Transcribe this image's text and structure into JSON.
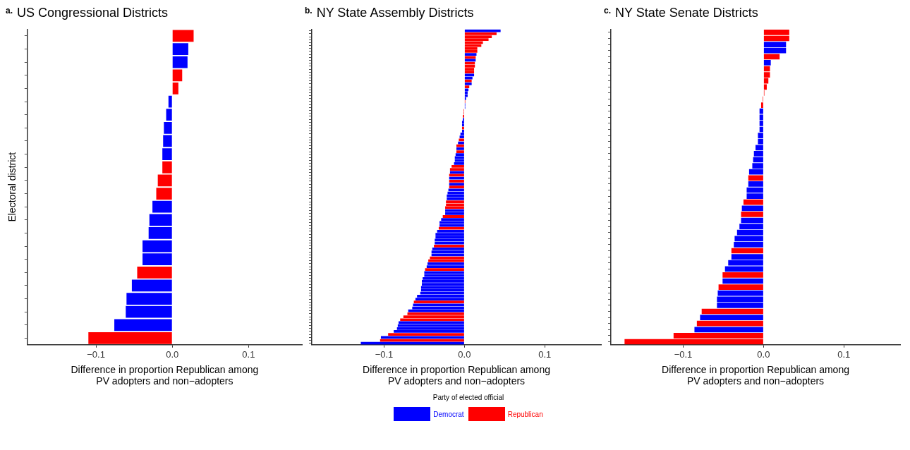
{
  "chart_data": [
    {
      "type": "bar",
      "orientation": "horizontal",
      "title": "US Congressional Districts",
      "annotations": [
        "a."
      ],
      "xlabel": "Difference in proportion Republican among\nPV adopters and non−adopters",
      "ylabel": "Electoral district",
      "xlim": [
        -0.19,
        0.17
      ],
      "xticks": [
        {
          "value": -0.1,
          "label": "−0.1"
        },
        {
          "value": 0,
          "label": "0.0"
        },
        {
          "value": 0.1,
          "label": "0.1"
        }
      ],
      "tick_labels": "x",
      "grid": false,
      "legend": false,
      "categories": [
        null,
        null,
        null,
        null,
        null,
        null,
        null,
        null,
        null,
        null,
        null,
        null,
        null,
        null,
        null,
        null,
        null,
        null,
        null,
        null,
        null,
        null,
        null,
        null
      ],
      "series": [
        {
          "color": "#0000ff",
          "values": [
            null,
            0.021,
            0.02,
            null,
            null,
            -0.005,
            -0.008,
            -0.011,
            -0.012,
            -0.013,
            null,
            null,
            null,
            -0.026,
            -0.03,
            -0.031,
            -0.039,
            -0.039,
            null,
            -0.053,
            -0.06,
            -0.061,
            -0.076,
            null
          ]
        },
        {
          "color": "#ff0000",
          "values": [
            0.028,
            null,
            null,
            0.013,
            0.008,
            null,
            null,
            null,
            null,
            null,
            -0.013,
            -0.019,
            -0.021,
            null,
            null,
            null,
            null,
            null,
            -0.046,
            null,
            null,
            null,
            null,
            -0.11
          ]
        }
      ]
    },
    {
      "type": "bar",
      "orientation": "horizontal",
      "title": "NY State Assembly Districts",
      "annotations": [
        "b."
      ],
      "xlabel": "Difference in proportion Republican among\nPV adopters and non−adopters",
      "xlim": [
        -0.19,
        0.17
      ],
      "xticks": [
        {
          "value": -0.1,
          "label": "−0.1"
        },
        {
          "value": 0,
          "label": "0.0"
        },
        {
          "value": 0.1,
          "label": "0.1"
        }
      ],
      "tick_labels": "x",
      "grid": false,
      "legend": "bottom",
      "legend_title": "Party of elected official",
      "categories": [
        null,
        null,
        null,
        null,
        null,
        null,
        null,
        null,
        null,
        null,
        null,
        null,
        null,
        null,
        null,
        null,
        null,
        null,
        null,
        null,
        null,
        null,
        null,
        null,
        null,
        null,
        null,
        null,
        null,
        null,
        null,
        null,
        null,
        null,
        null,
        null,
        null,
        null,
        null,
        null,
        null,
        null,
        null,
        null,
        null,
        null,
        null,
        null,
        null,
        null,
        null,
        null,
        null,
        null,
        null,
        null,
        null,
        null,
        null,
        null,
        null,
        null,
        null,
        null,
        null,
        null,
        null,
        null,
        null,
        null,
        null,
        null,
        null,
        null,
        null,
        null,
        null,
        null,
        null,
        null,
        null,
        null,
        null,
        null,
        null,
        null,
        null,
        null,
        null,
        null,
        null,
        null,
        null,
        null,
        null,
        null,
        null,
        null,
        null,
        null,
        null,
        null,
        null,
        null,
        null,
        null,
        null
      ],
      "series": [
        {
          "name": "Democrat",
          "color": "#0000ff",
          "values": [
            0.045,
            null,
            null,
            null,
            null,
            null,
            null,
            null,
            0.015,
            null,
            0.014,
            null,
            null,
            null,
            null,
            0.012,
            0.01,
            null,
            0.009,
            null,
            0.005,
            0.004,
            0.004,
            0.002,
            null,
            0.001,
            0.001,
            null,
            null,
            null,
            -0.002,
            -0.003,
            -0.003,
            null,
            -0.003,
            -0.005,
            -0.006,
            null,
            -0.008,
            null,
            -0.01,
            null,
            -0.011,
            -0.012,
            -0.012,
            -0.013,
            null,
            null,
            -0.018,
            null,
            -0.019,
            null,
            -0.019,
            null,
            -0.02,
            -0.021,
            -0.022,
            -0.022,
            null,
            null,
            null,
            -0.024,
            -0.024,
            null,
            -0.029,
            -0.031,
            -0.031,
            null,
            -0.034,
            -0.036,
            -0.036,
            -0.037,
            -0.037,
            null,
            -0.04,
            -0.041,
            -0.041,
            null,
            null,
            -0.046,
            -0.047,
            null,
            -0.05,
            -0.05,
            -0.052,
            -0.053,
            -0.053,
            -0.054,
            -0.054,
            -0.055,
            -0.059,
            -0.061,
            null,
            -0.064,
            -0.065,
            -0.07,
            null,
            null,
            null,
            -0.082,
            -0.083,
            -0.084,
            -0.088,
            null,
            -0.104,
            null,
            -0.129
          ]
        },
        {
          "name": "Republican",
          "color": "#ff0000",
          "values": [
            null,
            0.04,
            0.034,
            0.03,
            0.023,
            0.021,
            0.016,
            0.016,
            null,
            0.014,
            null,
            0.013,
            0.013,
            0.012,
            0.012,
            null,
            null,
            0.009,
            null,
            0.006,
            null,
            null,
            null,
            null,
            0.001,
            null,
            null,
            -0.001,
            -0.001,
            -0.002,
            null,
            null,
            null,
            -0.003,
            null,
            null,
            null,
            -0.007,
            null,
            -0.01,
            null,
            -0.01,
            null,
            null,
            null,
            null,
            -0.016,
            -0.018,
            null,
            -0.019,
            null,
            -0.019,
            null,
            -0.019,
            null,
            null,
            null,
            null,
            -0.023,
            -0.023,
            -0.024,
            null,
            null,
            -0.027,
            null,
            null,
            null,
            -0.032,
            null,
            null,
            null,
            null,
            null,
            -0.038,
            null,
            null,
            null,
            -0.043,
            -0.045,
            null,
            null,
            -0.049,
            null,
            null,
            null,
            null,
            null,
            null,
            null,
            null,
            null,
            null,
            -0.063,
            null,
            null,
            null,
            -0.071,
            -0.076,
            -0.08,
            null,
            null,
            null,
            null,
            -0.095,
            null,
            -0.105,
            null
          ]
        }
      ]
    },
    {
      "type": "bar",
      "orientation": "horizontal",
      "title": "NY State Senate Districts",
      "annotations": [
        "c."
      ],
      "xlabel": "Difference in proportion Republican among\nPV adopters and non−adopters",
      "xlim": [
        -0.19,
        0.17
      ],
      "xticks": [
        {
          "value": -0.1,
          "label": "−0.1"
        },
        {
          "value": 0,
          "label": "0.0"
        },
        {
          "value": 0.1,
          "label": "0.1"
        }
      ],
      "tick_labels": "x",
      "grid": false,
      "legend": false,
      "categories": [
        null,
        null,
        null,
        null,
        null,
        null,
        null,
        null,
        null,
        null,
        null,
        null,
        null,
        null,
        null,
        null,
        null,
        null,
        null,
        null,
        null,
        null,
        null,
        null,
        null,
        null,
        null,
        null,
        null,
        null,
        null,
        null,
        null,
        null,
        null,
        null,
        null,
        null,
        null,
        null,
        null,
        null,
        null,
        null,
        null,
        null,
        null,
        null,
        null,
        null,
        null,
        null
      ],
      "series": [
        {
          "color": "#0000ff",
          "values": [
            null,
            null,
            0.028,
            0.028,
            null,
            0.009,
            null,
            null,
            null,
            null,
            null,
            null,
            null,
            -0.005,
            -0.005,
            -0.005,
            -0.005,
            -0.007,
            -0.007,
            -0.01,
            -0.012,
            -0.013,
            -0.014,
            -0.018,
            null,
            -0.019,
            -0.021,
            -0.021,
            null,
            -0.027,
            null,
            -0.028,
            -0.03,
            -0.033,
            -0.036,
            -0.037,
            null,
            -0.04,
            -0.044,
            -0.048,
            null,
            -0.051,
            null,
            -0.057,
            -0.058,
            -0.058,
            null,
            -0.079,
            null,
            -0.086,
            null,
            null
          ]
        },
        {
          "color": "#ff0000",
          "values": [
            0.032,
            0.032,
            null,
            null,
            0.02,
            null,
            0.008,
            0.008,
            0.006,
            0.004,
            0.001,
            -0.001,
            -0.003,
            null,
            null,
            null,
            null,
            null,
            null,
            null,
            null,
            null,
            null,
            null,
            -0.019,
            null,
            null,
            null,
            -0.025,
            null,
            -0.028,
            null,
            null,
            null,
            null,
            null,
            -0.04,
            null,
            null,
            null,
            -0.051,
            null,
            -0.056,
            null,
            null,
            null,
            -0.077,
            null,
            -0.083,
            null,
            -0.112,
            -0.173
          ]
        }
      ]
    }
  ]
}
